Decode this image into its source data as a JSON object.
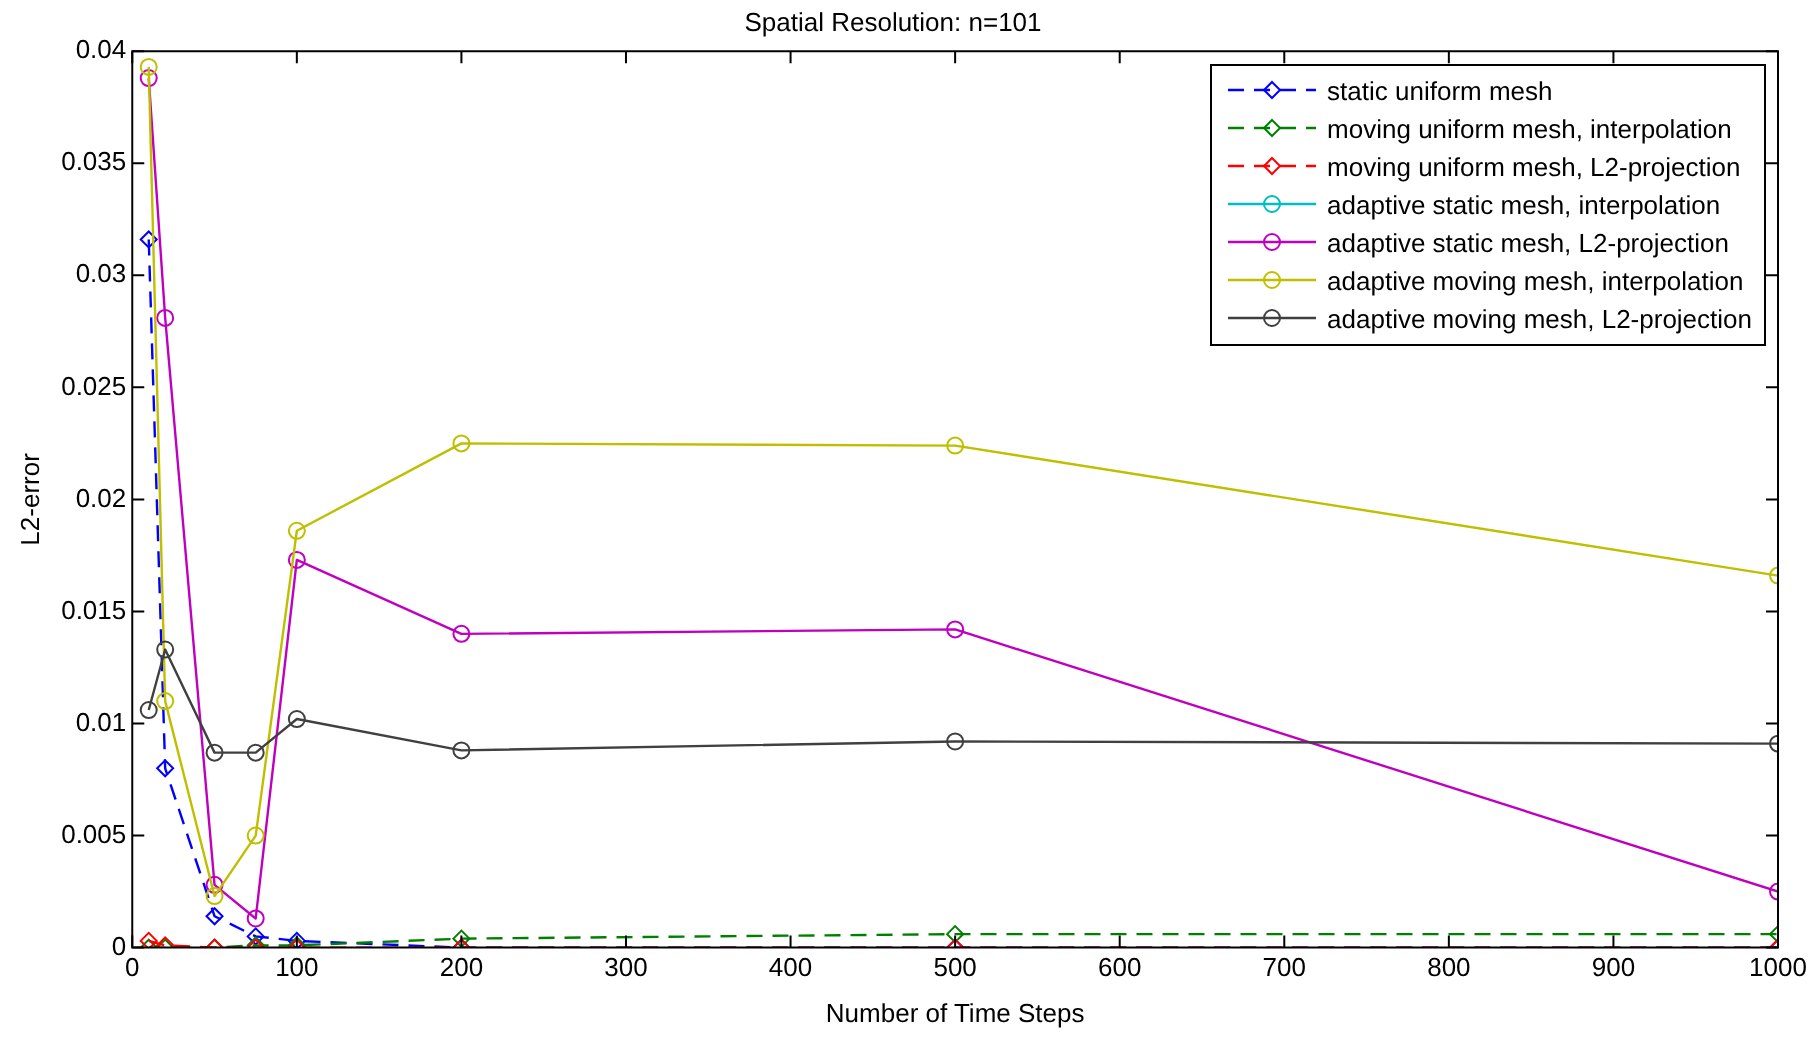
{
  "chart_data": {
    "type": "line",
    "title": "Spatial Resolution: n=101",
    "xlabel": "Number of Time Steps",
    "ylabel": "L2-error",
    "x": [
      10,
      20,
      50,
      75,
      100,
      200,
      500,
      1000
    ],
    "xlim": [
      0,
      1000
    ],
    "xticks": [
      0,
      100,
      200,
      300,
      400,
      500,
      600,
      700,
      800,
      900,
      1000
    ],
    "ylim": [
      0,
      0.04
    ],
    "yticks": [
      0,
      0.005,
      0.01,
      0.015,
      0.02,
      0.025,
      0.03,
      0.035,
      0.04
    ],
    "grid": false,
    "legend": "top right",
    "series": [
      {
        "name": "static uniform mesh",
        "color": "#0000ff",
        "marker": "diamond",
        "line_style": "dashed",
        "values": [
          0.0316,
          0.008,
          0.0014,
          0.0005,
          0.0003,
          0,
          0,
          0
        ]
      },
      {
        "name": "moving uniform mesh, interpolation",
        "color": "#008000",
        "marker": "diamond",
        "line_style": "dashed",
        "values": [
          0,
          0,
          0,
          0.0001,
          0.0001,
          0.0004,
          0.0006,
          0.0006
        ]
      },
      {
        "name": "moving uniform mesh, L2-projection",
        "color": "#ff0000",
        "marker": "diamond",
        "line_style": "dashed",
        "values": [
          0.0003,
          0.0001,
          0,
          0,
          0,
          0,
          0,
          0
        ]
      },
      {
        "name": "adaptive static mesh, interpolation",
        "color": "#00bfbf",
        "marker": "circle",
        "line_style": "solid",
        "values": [
          null,
          null,
          null,
          null,
          null,
          null,
          null,
          null
        ]
      },
      {
        "name": "adaptive static mesh, L2-projection",
        "color": "#bf00bf",
        "marker": "circle",
        "line_style": "solid",
        "values": [
          0.0388,
          0.0281,
          0.0028,
          0.0013,
          0.0173,
          0.014,
          0.0142,
          0.0025
        ]
      },
      {
        "name": "adaptive moving mesh, interpolation",
        "color": "#bfbf00",
        "marker": "circle",
        "line_style": "solid",
        "values": [
          0.0393,
          0.011,
          0.0023,
          0.005,
          0.0186,
          0.0225,
          0.0224,
          0.0166
        ]
      },
      {
        "name": "adaptive moving mesh, L2-projection",
        "color": "#404040",
        "marker": "circle",
        "line_style": "solid",
        "values": [
          0.0106,
          0.0133,
          0.0087,
          0.0087,
          0.0102,
          0.0088,
          0.0092,
          0.0091
        ]
      }
    ]
  }
}
